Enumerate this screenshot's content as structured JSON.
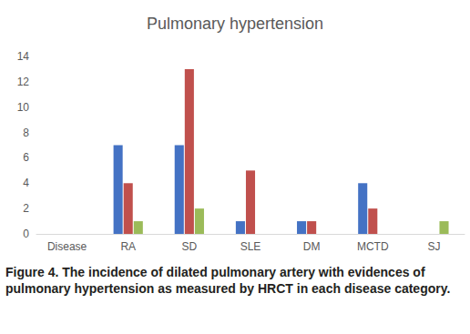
{
  "chart_data": {
    "type": "bar",
    "title": "Pulmonary hypertension",
    "categories": [
      "Disease",
      "RA",
      "SD",
      "SLE",
      "DM",
      "MCTD",
      "SJ"
    ],
    "series": [
      {
        "color": "#4472c4",
        "values": [
          null,
          7,
          7,
          1,
          1,
          4,
          null
        ]
      },
      {
        "color": "#c0504d",
        "values": [
          null,
          4,
          13,
          5,
          1,
          2,
          null
        ]
      },
      {
        "color": "#9bbb59",
        "values": [
          null,
          1,
          2,
          null,
          null,
          null,
          1
        ]
      }
    ],
    "ylim": [
      0,
      14
    ],
    "yticks": [
      0,
      2,
      4,
      6,
      8,
      10,
      12,
      14
    ],
    "grid": false,
    "caption": "Figure 4. The incidence of dilated pulmonary artery with evidences of pulmonary hypertension as measured by HRCT in each disease category."
  }
}
